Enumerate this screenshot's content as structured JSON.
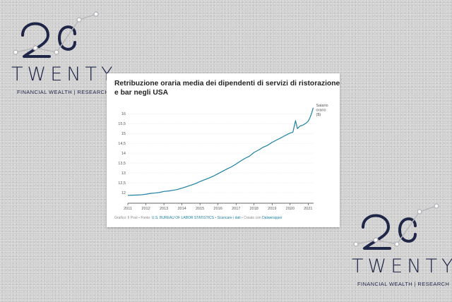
{
  "logo": {
    "word": "TWENTY",
    "tagline": "FINANCIAL WEALTH | RESEARCH",
    "color": "#1f2647",
    "accent": "#b8b8bc"
  },
  "chart_data": {
    "type": "line",
    "title": "Retribuzione oraria media dei dipendenti di servizi di ristorazione e bar negli USA",
    "xlabel": "",
    "ylabel": "",
    "xlim": [
      2011,
      2021.3
    ],
    "ylim": [
      11.75,
      16.4
    ],
    "x_ticks": [
      2011,
      2012,
      2013,
      2014,
      2015,
      2016,
      2017,
      2018,
      2019,
      2020,
      2021
    ],
    "y_ticks": [
      12,
      12.5,
      13,
      13.5,
      14,
      14.5,
      15,
      15.5,
      16
    ],
    "y_tick_labels": [
      "12",
      "12,5",
      "13",
      "13,5",
      "14",
      "14,5",
      "15",
      "15,5",
      "16"
    ],
    "grid": true,
    "series": [
      {
        "name": "Salario orario ($)",
        "color": "#1d81a2",
        "points": [
          [
            2011.0,
            11.86
          ],
          [
            2011.25,
            11.87
          ],
          [
            2011.5,
            11.88
          ],
          [
            2011.75,
            11.89
          ],
          [
            2012.0,
            11.92
          ],
          [
            2012.25,
            11.96
          ],
          [
            2012.5,
            11.98
          ],
          [
            2012.75,
            12.01
          ],
          [
            2013.0,
            12.06
          ],
          [
            2013.25,
            12.08
          ],
          [
            2013.5,
            12.12
          ],
          [
            2013.75,
            12.16
          ],
          [
            2014.0,
            12.23
          ],
          [
            2014.25,
            12.3
          ],
          [
            2014.5,
            12.38
          ],
          [
            2014.75,
            12.46
          ],
          [
            2015.0,
            12.56
          ],
          [
            2015.25,
            12.65
          ],
          [
            2015.5,
            12.74
          ],
          [
            2015.75,
            12.84
          ],
          [
            2016.0,
            12.96
          ],
          [
            2016.25,
            13.08
          ],
          [
            2016.5,
            13.2
          ],
          [
            2016.75,
            13.31
          ],
          [
            2017.0,
            13.45
          ],
          [
            2017.25,
            13.6
          ],
          [
            2017.5,
            13.74
          ],
          [
            2017.75,
            13.85
          ],
          [
            2018.0,
            14.04
          ],
          [
            2018.25,
            14.16
          ],
          [
            2018.5,
            14.3
          ],
          [
            2018.75,
            14.4
          ],
          [
            2019.0,
            14.55
          ],
          [
            2019.25,
            14.67
          ],
          [
            2019.5,
            14.78
          ],
          [
            2019.75,
            14.91
          ],
          [
            2020.0,
            15.02
          ],
          [
            2020.15,
            15.06
          ],
          [
            2020.3,
            15.65
          ],
          [
            2020.4,
            15.25
          ],
          [
            2020.55,
            15.38
          ],
          [
            2020.7,
            15.42
          ],
          [
            2020.85,
            15.5
          ],
          [
            2021.0,
            15.62
          ],
          [
            2021.1,
            15.8
          ],
          [
            2021.2,
            16.05
          ],
          [
            2021.28,
            16.3
          ]
        ]
      }
    ],
    "legend": {
      "lines": [
        "Salario",
        "orario",
        "($)"
      ],
      "placement": "line-end"
    }
  },
  "footer": {
    "source_prefix": "Grafico: Il Post • Fonte: ",
    "source_link": "U.S. BUREAU OF LABOR STATISTICS",
    "separator": " • ",
    "download_link": "Scaricare i dati",
    "created_prefix": " • Creato con ",
    "tool_link": "Datawrapper"
  }
}
